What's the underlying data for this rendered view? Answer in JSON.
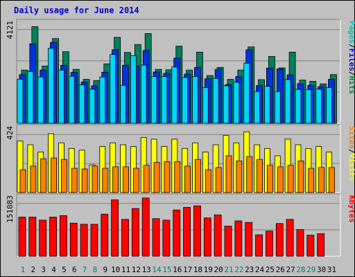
{
  "chart_data": {
    "type": "bar",
    "title": "Daily usage for June 2014",
    "days": [
      "1",
      "2",
      "3",
      "4",
      "5",
      "6",
      "7",
      "8",
      "9",
      "10",
      "11",
      "12",
      "13",
      "14",
      "15",
      "16",
      "17",
      "18",
      "19",
      "20",
      "21",
      "22",
      "23",
      "24",
      "25",
      "26",
      "27",
      "28",
      "29",
      "30",
      "31"
    ],
    "weekend_days": [
      "1",
      "7",
      "8",
      "14",
      "15",
      "21",
      "22",
      "28",
      "29"
    ],
    "panels": [
      {
        "id": "hits",
        "axis_max_label": "4121",
        "axis_max": 4121,
        "side_label": [
          "Pages",
          "/",
          "Files",
          "/",
          "Hits"
        ],
        "side_colors": [
          "#00c0c0",
          "#000000",
          "#0000e0",
          "#000000",
          "#008040"
        ],
        "series": [
          {
            "name": "Hits",
            "color": "#00805c",
            "values": [
              2230,
              4050,
              2400,
              3550,
              3000,
              2260,
              1840,
              1790,
              2490,
              3600,
              2970,
              3300,
              3760,
              2260,
              2240,
              3230,
              2230,
              2980,
              2000,
              2340,
              1840,
              2230,
              3200,
              1830,
              2800,
              2320,
              2980,
              1810,
              1760,
              1650,
              2040
            ]
          },
          {
            "name": "Files",
            "color": "#0033dd",
            "values": [
              2040,
              3330,
              2230,
              3390,
              2430,
              2130,
              1730,
              1570,
              2140,
              3080,
              2430,
              2400,
              3050,
              2150,
              2090,
              2730,
              2060,
              2340,
              1860,
              2260,
              1620,
              1960,
              3080,
              1580,
              2310,
              2280,
              2030,
              1660,
              1590,
              1540,
              1840
            ]
          },
          {
            "name": "Pages",
            "color": "#00d4ff",
            "values": [
              1850,
              2170,
              1940,
              3140,
              2230,
              1970,
              1610,
              1430,
              1940,
              2880,
              1590,
              2830,
              2440,
              1960,
              1960,
              2360,
              1920,
              1960,
              1490,
              1880,
              1570,
              1720,
              2520,
              1330,
              1550,
              1330,
              1830,
              1420,
              1410,
              1430,
              1500
            ]
          }
        ]
      },
      {
        "id": "visits",
        "axis_max_label": "424",
        "axis_max": 424,
        "side_label": [
          "Sites",
          "/",
          "Visits"
        ],
        "side_colors": [
          "#ff8000",
          "#000000",
          "#ffff00"
        ],
        "series": [
          {
            "name": "Visits",
            "color": "#ffff00",
            "values": [
              350,
              325,
              275,
              400,
              338,
              300,
              288,
              188,
              313,
              338,
              325,
              313,
              375,
              363,
              313,
              363,
              300,
              338,
              275,
              325,
              388,
              338,
              413,
              325,
              300,
              250,
              363,
              325,
              300,
              313,
              275
            ]
          },
          {
            "name": "Sites",
            "color": "#ff8000",
            "values": [
              155,
              180,
              230,
              235,
              225,
              165,
              160,
              180,
              165,
              175,
              175,
              165,
              185,
              205,
              210,
              210,
              180,
              225,
              155,
              170,
              250,
              215,
              245,
              225,
              185,
              175,
              185,
              215,
              165,
              170,
              170
            ]
          }
        ]
      },
      {
        "id": "kbytes",
        "axis_max_label": "151083",
        "axis_max": 151083,
        "side_label": [
          "KBytes"
        ],
        "side_colors": [
          "#ff0000"
        ],
        "series": [
          {
            "name": "KBytes",
            "color": "#ff0000",
            "values": [
              104000,
              104000,
              96000,
              104000,
              108000,
              88000,
              85000,
              85000,
              112000,
              150000,
              98000,
              127000,
              155000,
              100000,
              96000,
              123000,
              130000,
              134000,
              102000,
              110000,
              80000,
              94000,
              90000,
              57000,
              67000,
              87000,
              98000,
              71000,
              56000,
              60000,
              0
            ]
          }
        ]
      }
    ]
  }
}
